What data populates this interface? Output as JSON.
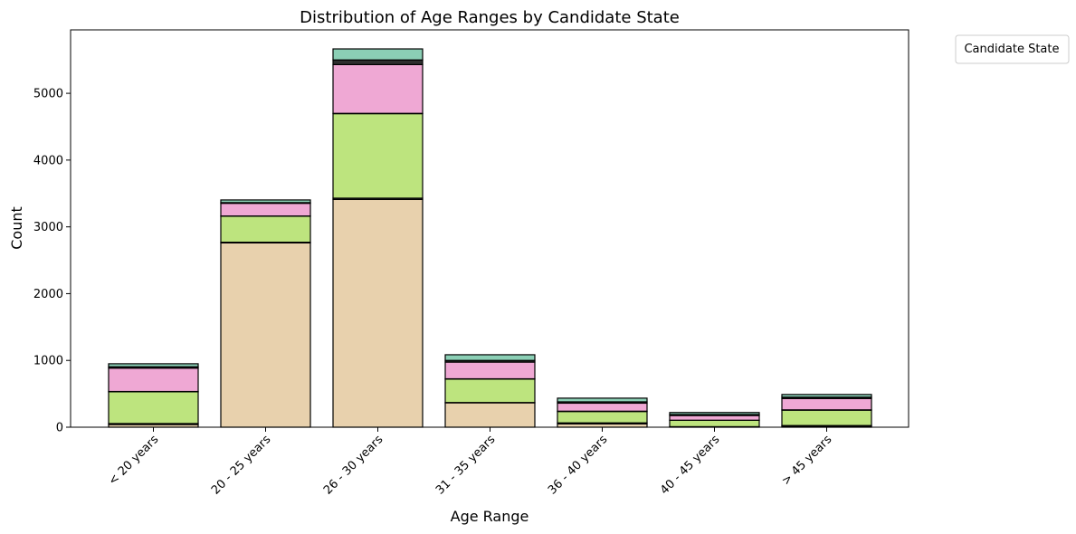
{
  "chart_data": {
    "type": "bar",
    "stacked": true,
    "title": "Distribution of Age Ranges by Candidate State",
    "xlabel": "Age Range",
    "ylabel": "Count",
    "ylim": [
      0,
      5950
    ],
    "yticks": [
      0,
      1000,
      2000,
      3000,
      4000,
      5000
    ],
    "categories": [
      "< 20 years",
      "20 - 25 years",
      "26 - 30 years",
      "31 - 35 years",
      "36 - 40 years",
      "40 - 45 years",
      "> 45 years"
    ],
    "series": [
      {
        "color": "#e8d1ad",
        "values": [
          40,
          2760,
          3410,
          365,
          50,
          5,
          15
        ]
      },
      {
        "color": "#2e2e2e",
        "values": [
          15,
          10,
          20,
          5,
          15,
          3,
          10
        ]
      },
      {
        "color": "#bde47e",
        "values": [
          475,
          390,
          1265,
          350,
          170,
          95,
          230
        ]
      },
      {
        "color": "#2e2e2e",
        "values": [
          5,
          3,
          5,
          5,
          5,
          2,
          5
        ]
      },
      {
        "color": "#efa8d4",
        "values": [
          350,
          190,
          730,
          250,
          120,
          70,
          170
        ]
      },
      {
        "color": "#2e2e2e",
        "values": [
          20,
          10,
          70,
          25,
          20,
          15,
          20
        ]
      },
      {
        "color": "#8bcfb5",
        "values": [
          45,
          40,
          165,
          85,
          55,
          30,
          40
        ]
      }
    ],
    "legend": {
      "title": "Candidate State",
      "placement": "outside-top-right"
    },
    "grid": false
  }
}
